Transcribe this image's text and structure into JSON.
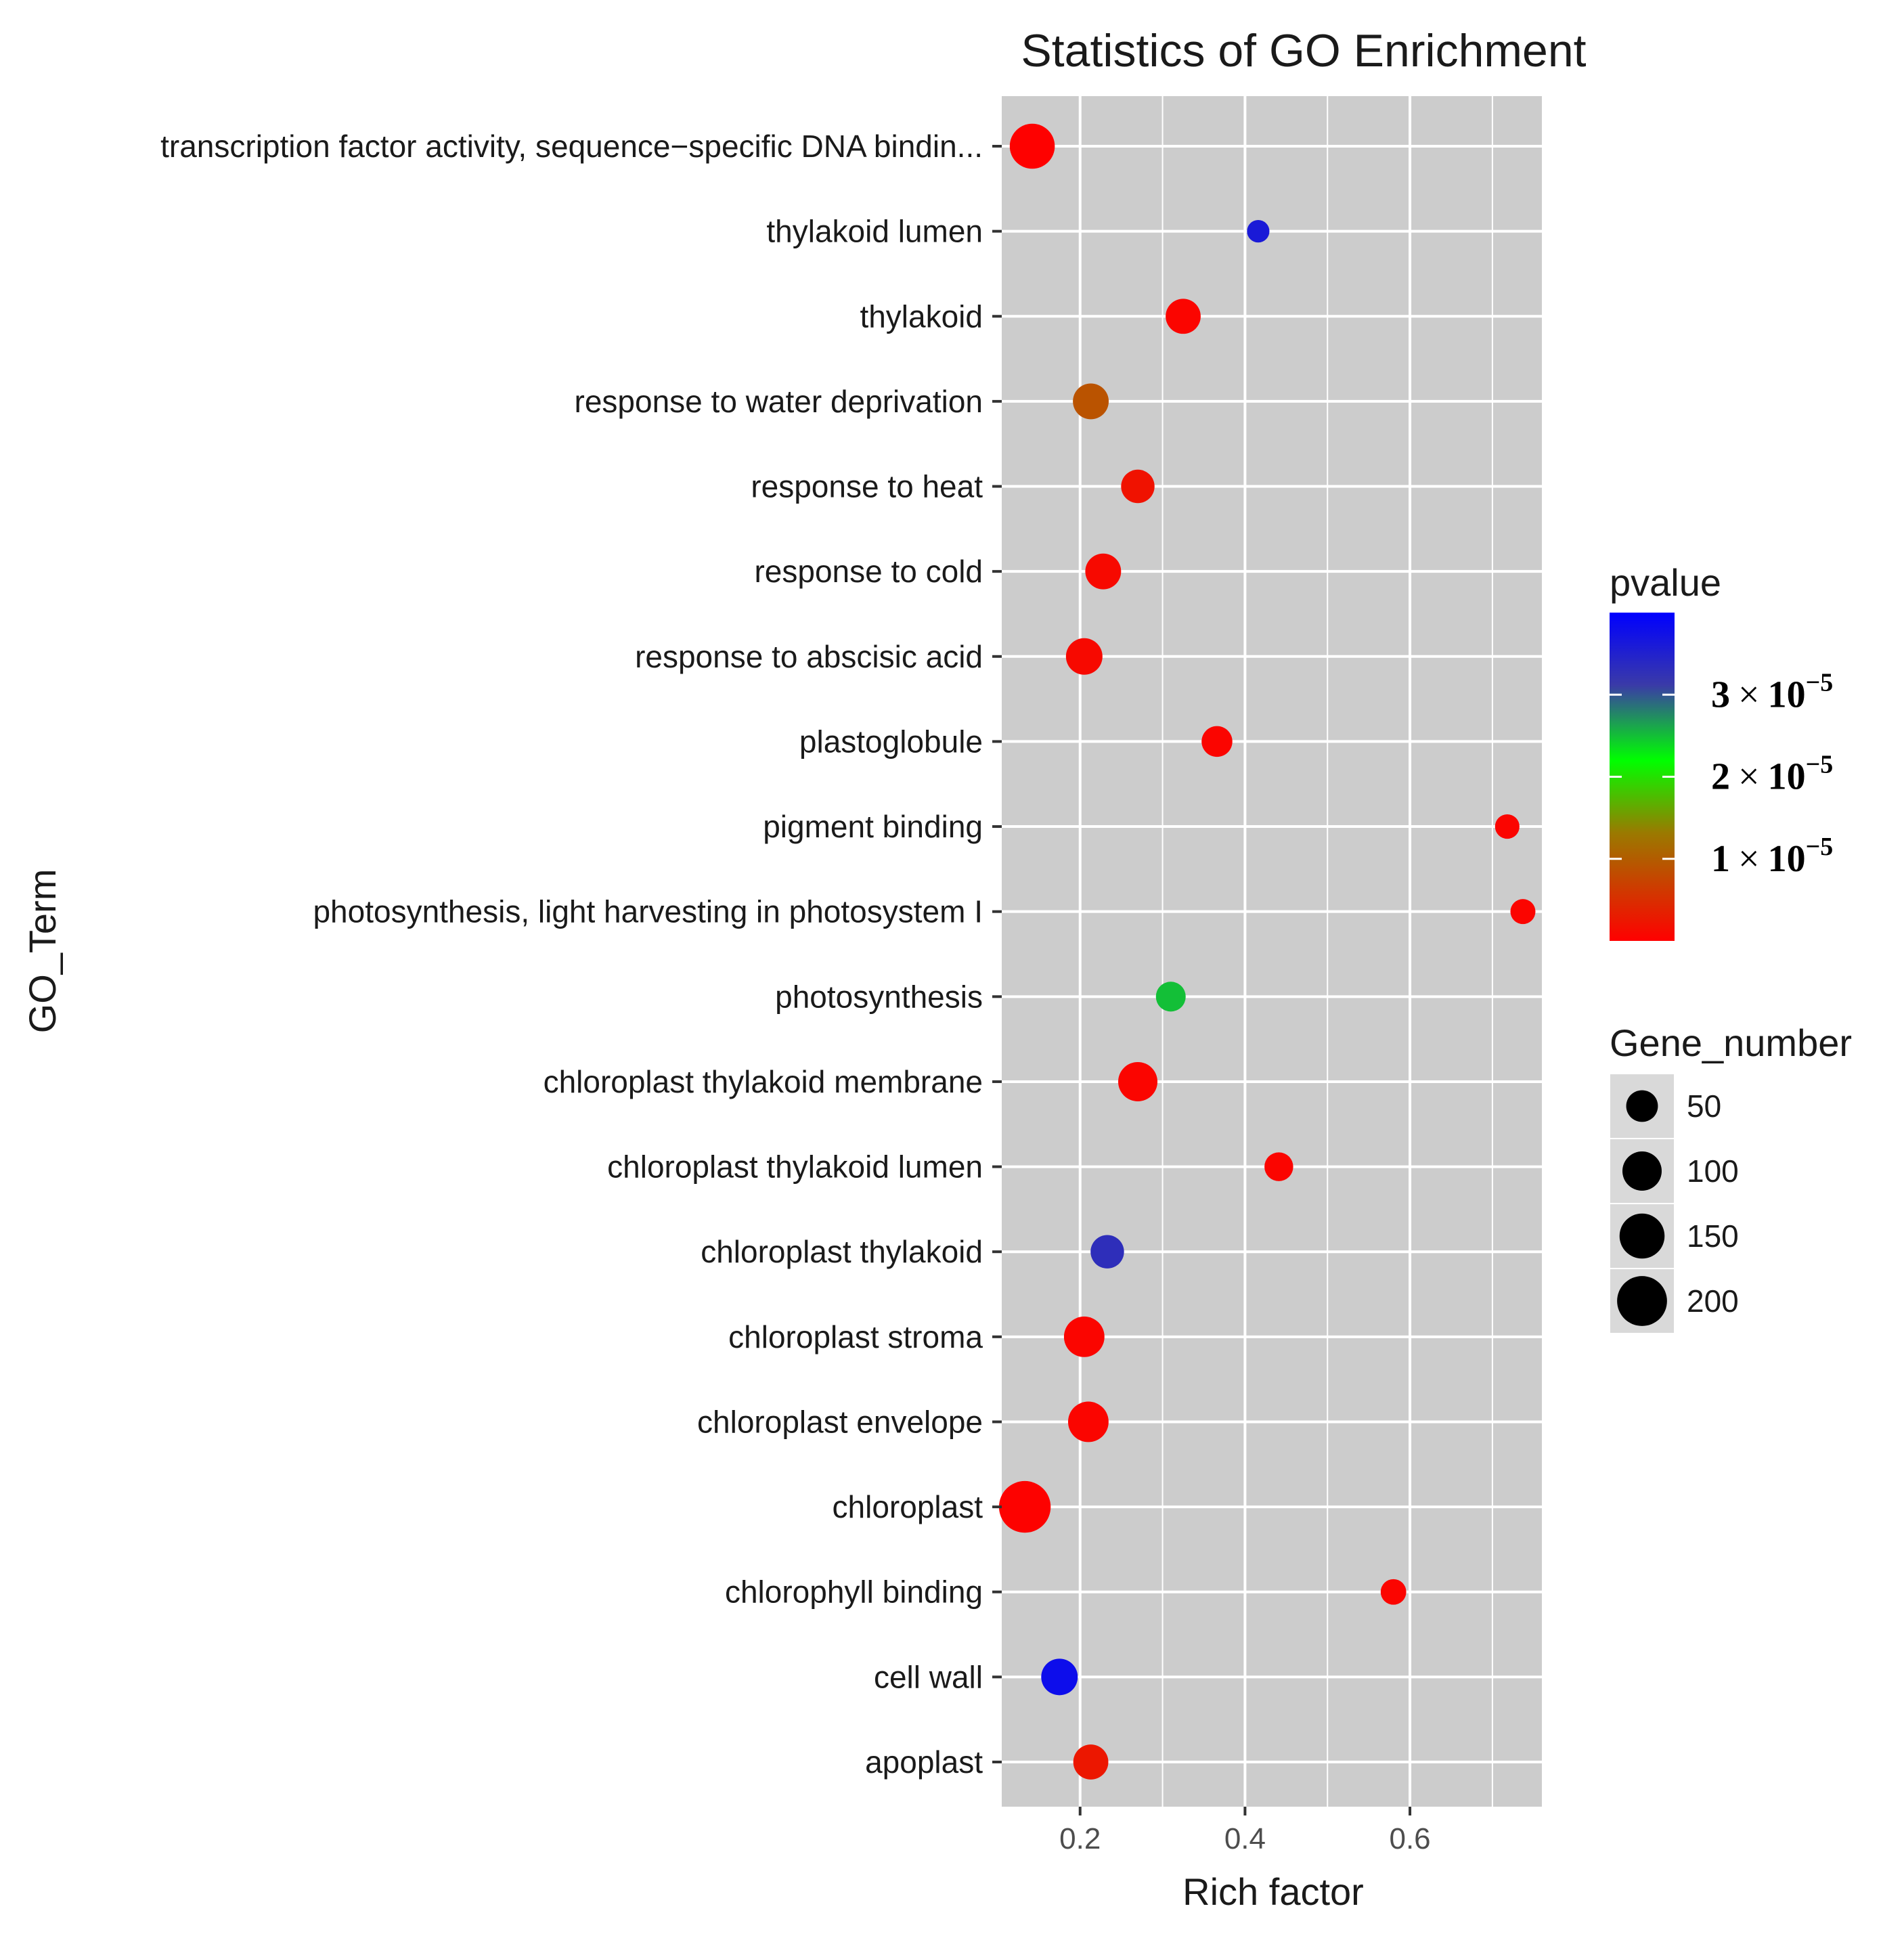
{
  "chart_data": {
    "type": "scatter",
    "title": "Statistics of GO Enrichment",
    "xlabel": "Rich factor",
    "ylabel": "GO_Term",
    "xlim": [
      0.105,
      0.76
    ],
    "x_ticks": [
      0.2,
      0.4,
      0.6
    ],
    "x_tick_labels": [
      "0.2",
      "0.4",
      "0.6"
    ],
    "grid": true,
    "categories": [
      "transcription factor activity, sequence−specific DNA bindin...",
      "thylakoid lumen",
      "thylakoid",
      "response to water deprivation",
      "response to heat",
      "response to cold",
      "response to abscisic acid",
      "plastoglobule",
      "pigment binding",
      "photosynthesis, light harvesting in photosystem I",
      "photosynthesis",
      "chloroplast thylakoid membrane",
      "chloroplast thylakoid lumen",
      "chloroplast thylakoid",
      "chloroplast stroma",
      "chloroplast envelope",
      "chloroplast",
      "chlorophyll binding",
      "cell wall",
      "apoplast"
    ],
    "points": [
      {
        "term": "transcription factor activity, sequence−specific DNA bindin...",
        "rich_factor": 0.142,
        "gene_number": 150,
        "pvalue": 1e-07
      },
      {
        "term": "thylakoid lumen",
        "rich_factor": 0.416,
        "gene_number": 12,
        "pvalue": 3.6e-05
      },
      {
        "term": "thylakoid",
        "rich_factor": 0.325,
        "gene_number": 70,
        "pvalue": 5e-07
      },
      {
        "term": "response to water deprivation",
        "rich_factor": 0.213,
        "gene_number": 75,
        "pvalue": 9e-06
      },
      {
        "term": "response to heat",
        "rich_factor": 0.27,
        "gene_number": 60,
        "pvalue": 2e-06
      },
      {
        "term": "response to cold",
        "rich_factor": 0.228,
        "gene_number": 75,
        "pvalue": 1e-06
      },
      {
        "term": "response to abscisic acid",
        "rich_factor": 0.205,
        "gene_number": 80,
        "pvalue": 1e-06
      },
      {
        "term": "plastoglobule",
        "rich_factor": 0.366,
        "gene_number": 45,
        "pvalue": 5e-07
      },
      {
        "term": "pigment binding",
        "rich_factor": 0.718,
        "gene_number": 18,
        "pvalue": 5e-07
      },
      {
        "term": "photosynthesis, light harvesting in photosystem I",
        "rich_factor": 0.737,
        "gene_number": 20,
        "pvalue": 5e-07
      },
      {
        "term": "photosynthesis",
        "rich_factor": 0.31,
        "gene_number": 40,
        "pvalue": 2.5e-05
      },
      {
        "term": "chloroplast thylakoid membrane",
        "rich_factor": 0.27,
        "gene_number": 100,
        "pvalue": 5e-07
      },
      {
        "term": "chloroplast thylakoid lumen",
        "rich_factor": 0.441,
        "gene_number": 35,
        "pvalue": 5e-07
      },
      {
        "term": "chloroplast thylakoid",
        "rich_factor": 0.233,
        "gene_number": 60,
        "pvalue": 3.3e-05
      },
      {
        "term": "chloroplast stroma",
        "rich_factor": 0.205,
        "gene_number": 110,
        "pvalue": 5e-07
      },
      {
        "term": "chloroplast envelope",
        "rich_factor": 0.21,
        "gene_number": 110,
        "pvalue": 5e-07
      },
      {
        "term": "chloroplast",
        "rich_factor": 0.133,
        "gene_number": 220,
        "pvalue": 2e-07
      },
      {
        "term": "chlorophyll binding",
        "rich_factor": 0.58,
        "gene_number": 22,
        "pvalue": 5e-07
      },
      {
        "term": "cell wall",
        "rich_factor": 0.175,
        "gene_number": 80,
        "pvalue": 3.8e-05
      },
      {
        "term": "apoplast",
        "rich_factor": 0.213,
        "gene_number": 70,
        "pvalue": 2.5e-06
      }
    ],
    "legend_pvalue": {
      "title": "pvalue",
      "placement": "right",
      "range": [
        0,
        4e-05
      ],
      "ticks": [
        {
          "value": 1e-05,
          "mantissa": "1",
          "times": "×",
          "base": "10",
          "exponent": "−5"
        },
        {
          "value": 2e-05,
          "mantissa": "2",
          "times": "×",
          "base": "10",
          "exponent": "−5"
        },
        {
          "value": 3e-05,
          "mantissa": "3",
          "times": "×",
          "base": "10",
          "exponent": "−5"
        }
      ],
      "colors": [
        "#ff0000",
        "#9a7a00",
        "#00ff00",
        "#3a3aa8",
        "#0000ff"
      ]
    },
    "legend_size": {
      "title": "Gene_number",
      "placement": "right",
      "values": [
        50,
        100,
        150,
        200
      ],
      "labels": [
        "50",
        "100",
        "150",
        "200"
      ]
    },
    "colors": {
      "panel_background": "#cccccc",
      "grid": "#ffffff",
      "text": "#1a1a1a",
      "axis_text": "#333333",
      "legend_key_background": "#d9d9d9"
    }
  }
}
